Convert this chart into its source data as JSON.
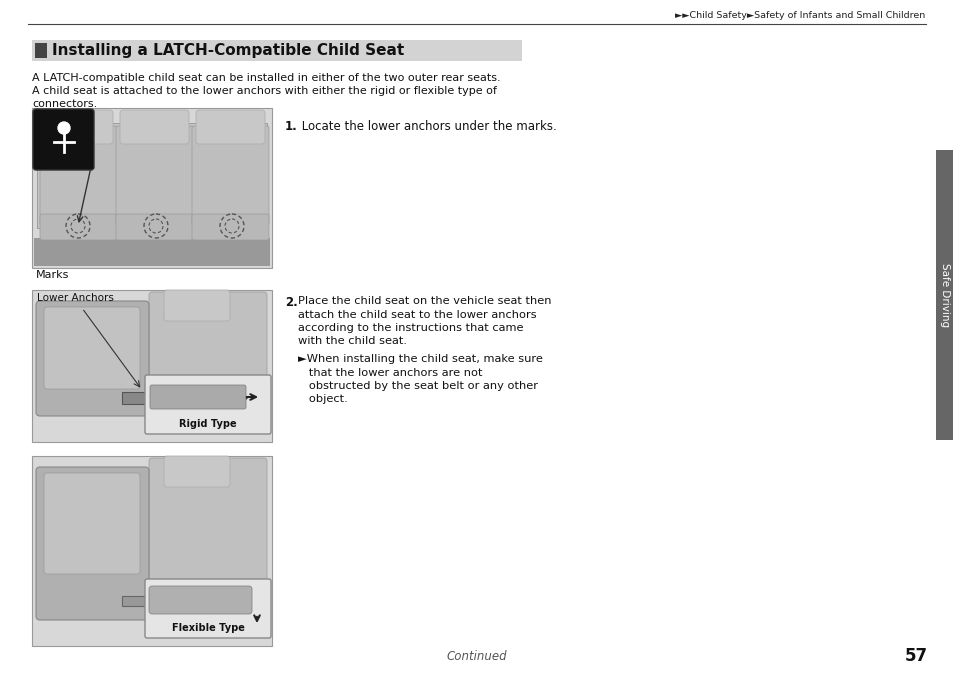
{
  "page_bg": "#ffffff",
  "top_nav": "►►Child Safety►Safety of Infants and Small Children",
  "section_title": "Installing a LATCH-Compatible Child Seat",
  "section_title_bg": "#d3d3d3",
  "body_text_line1": "A LATCH-compatible child seat can be installed in either of the two outer rear seats.",
  "body_text_line2": "A child seat is attached to the lower anchors with either the rigid or flexible type of",
  "body_text_line3": "connectors.",
  "step1_num": "1.",
  "step1_text": " Locate the lower anchors under the marks.",
  "step2_num": "2.",
  "step2_text": "Place the child seat on the vehicle seat then\nattach the child seat to the lower anchors\naccording to the instructions that came\nwith the child seat.",
  "step2_bullet": "►When installing the child seat, make sure\n   that the lower anchors are not\n   obstructed by the seat belt or any other\n   object.",
  "img1_label": "Marks",
  "img2_label_top": "Lower Anchors",
  "img2_sublabel": "Rigid Type",
  "img3_sublabel": "Flexible Type",
  "sidebar_text": "Safe Driving",
  "footer_text": "Continued",
  "page_number": "57",
  "img_bg": "#e8e8e8",
  "img_border": "#aaaaaa",
  "section_square_color": "#444444",
  "text_color": "#111111"
}
